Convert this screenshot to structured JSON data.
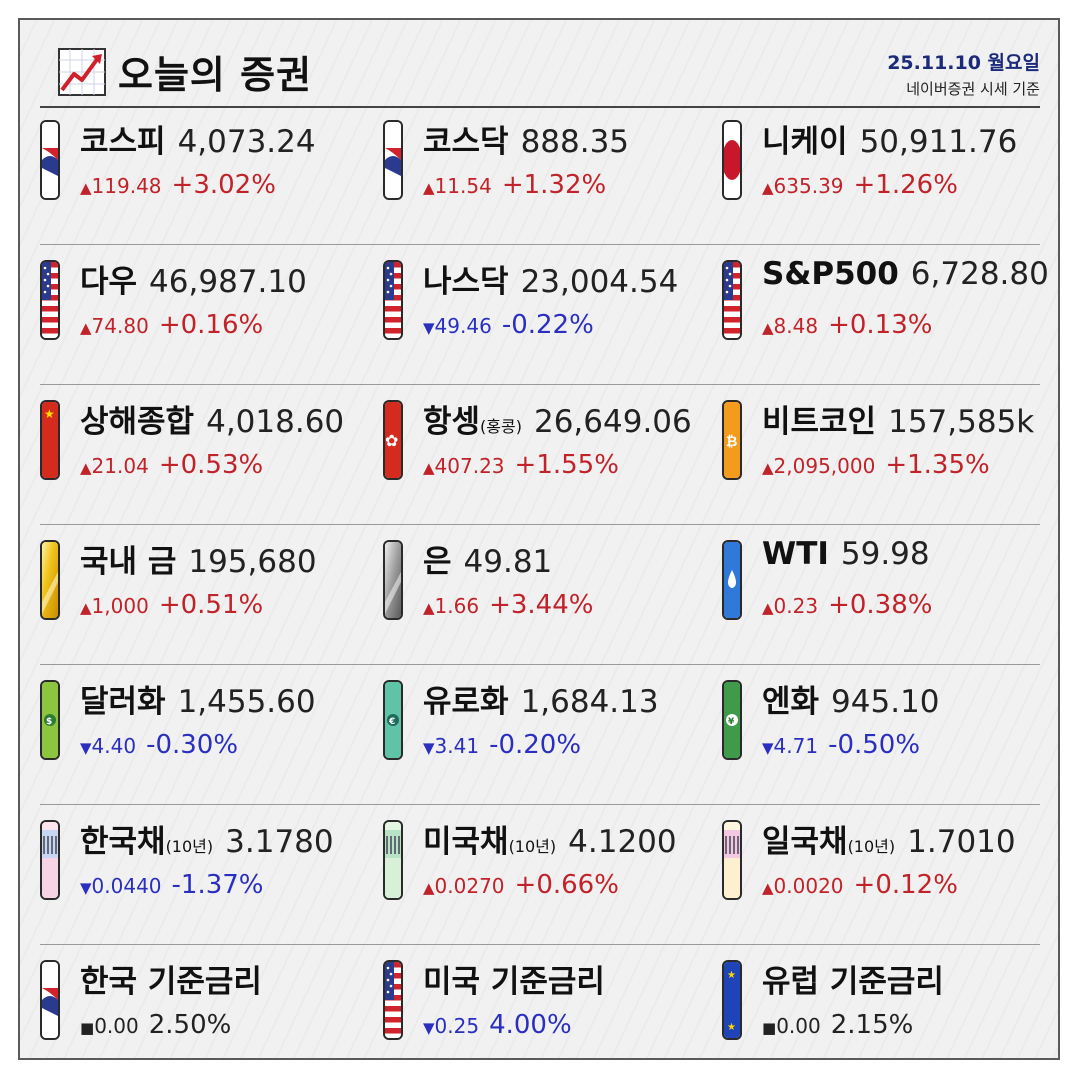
{
  "header": {
    "title": "오늘의 증권",
    "date": "25.11.10 월요일",
    "source": "네이버증권 시세 기준"
  },
  "colors": {
    "up": "#c1232a",
    "down": "#2a2fbf",
    "date": "#1c2a7a"
  },
  "items": [
    {
      "name": "코스피",
      "sub": "",
      "price": "4,073.24",
      "dir": "up",
      "mark": "▲",
      "change": "119.48",
      "pct": "+3.02%",
      "icon": "korea-flag-icon"
    },
    {
      "name": "코스닥",
      "sub": "",
      "price": "888.35",
      "dir": "up",
      "mark": "▲",
      "change": "11.54",
      "pct": "+1.32%",
      "icon": "korea-flag-icon"
    },
    {
      "name": "니케이",
      "sub": "",
      "price": "50,911.76",
      "dir": "up",
      "mark": "▲",
      "change": "635.39",
      "pct": "+1.26%",
      "icon": "japan-flag-icon"
    },
    {
      "name": "다우",
      "sub": "",
      "price": "46,987.10",
      "dir": "up",
      "mark": "▲",
      "change": "74.80",
      "pct": "+0.16%",
      "icon": "us-flag-icon"
    },
    {
      "name": "나스닥",
      "sub": "",
      "price": "23,004.54",
      "dir": "down",
      "mark": "▼",
      "change": "49.46",
      "pct": "-0.22%",
      "icon": "us-flag-icon"
    },
    {
      "name": "S&P500",
      "sub": "",
      "price": "6,728.80",
      "dir": "up",
      "mark": "▲",
      "change": "8.48",
      "pct": "+0.13%",
      "icon": "us-flag-icon"
    },
    {
      "name": "상해종합",
      "sub": "",
      "price": "4,018.60",
      "dir": "up",
      "mark": "▲",
      "change": "21.04",
      "pct": "+0.53%",
      "icon": "china-flag-icon"
    },
    {
      "name": "항셍",
      "sub": "(홍콩)",
      "price": "26,649.06",
      "dir": "up",
      "mark": "▲",
      "change": "407.23",
      "pct": "+1.55%",
      "icon": "hongkong-flag-icon"
    },
    {
      "name": "비트코인",
      "sub": "",
      "price": "157,585k",
      "dir": "up",
      "mark": "▲",
      "change": "2,095,000",
      "pct": "+1.35%",
      "icon": "bitcoin-icon"
    },
    {
      "name": "국내 금",
      "sub": "",
      "price": "195,680",
      "dir": "up",
      "mark": "▲",
      "change": "1,000",
      "pct": "+0.51%",
      "icon": "gold-icon"
    },
    {
      "name": "은",
      "sub": "",
      "price": "49.81",
      "dir": "up",
      "mark": "▲",
      "change": "1.66",
      "pct": "+3.44%",
      "icon": "silver-icon"
    },
    {
      "name": "WTI",
      "sub": "",
      "price": "59.98",
      "dir": "up",
      "mark": "▲",
      "change": "0.23",
      "pct": "+0.38%",
      "icon": "oil-drop-icon"
    },
    {
      "name": "달러화",
      "sub": "",
      "price": "1,455.60",
      "dir": "down",
      "mark": "▼",
      "change": "4.40",
      "pct": "-0.30%",
      "icon": "dollar-bill-icon"
    },
    {
      "name": "유로화",
      "sub": "",
      "price": "1,684.13",
      "dir": "down",
      "mark": "▼",
      "change": "3.41",
      "pct": "-0.20%",
      "icon": "euro-bill-icon"
    },
    {
      "name": "엔화",
      "sub": "",
      "price": "945.10",
      "dir": "down",
      "mark": "▼",
      "change": "4.71",
      "pct": "-0.50%",
      "icon": "yen-bill-icon"
    },
    {
      "name": "한국채",
      "sub": "(10년)",
      "price": "3.1780",
      "dir": "down",
      "mark": "▼",
      "change": "0.0440",
      "pct": "-1.37%",
      "icon": "korea-bond-icon"
    },
    {
      "name": "미국채",
      "sub": "(10년)",
      "price": "4.1200",
      "dir": "up",
      "mark": "▲",
      "change": "0.0270",
      "pct": "+0.66%",
      "icon": "us-bond-icon"
    },
    {
      "name": "일국채",
      "sub": "(10년)",
      "price": "1.7010",
      "dir": "up",
      "mark": "▲",
      "change": "0.0020",
      "pct": "+0.12%",
      "icon": "japan-bond-icon"
    },
    {
      "name": "한국 기준금리",
      "sub": "",
      "price": "",
      "dir": "flat",
      "mark": "■",
      "change": "0.00",
      "pct": "2.50%",
      "icon": "korea-flag-icon"
    },
    {
      "name": "미국 기준금리",
      "sub": "",
      "price": "",
      "dir": "down",
      "mark": "▼",
      "change": "0.25",
      "pct": "4.00%",
      "icon": "us-flag-icon"
    },
    {
      "name": "유럽 기준금리",
      "sub": "",
      "price": "",
      "dir": "flat",
      "mark": "■",
      "change": "0.00",
      "pct": "2.15%",
      "icon": "eu-flag-icon"
    }
  ]
}
